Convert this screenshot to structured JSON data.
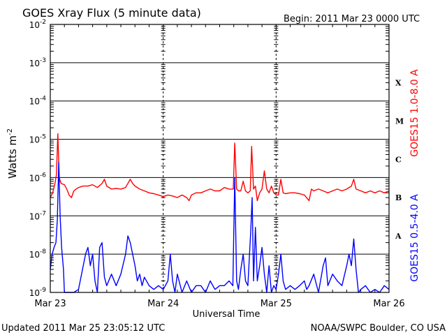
{
  "header": {
    "title": "GOES Xray Flux (5 minute data)",
    "begin": "Begin:  2011 Mar 23 0000 UTC"
  },
  "footer": {
    "updated": "Updated 2011 Mar 25 23:05:12 UTC",
    "credit": "NOAA/SWPC Boulder, CO USA"
  },
  "colors": {
    "long_channel": "#ff0000",
    "short_channel": "#0000ff",
    "grid": "#000000"
  },
  "chart_data": {
    "type": "line",
    "title": "GOES Xray Flux (5 minute data)",
    "xlabel": "Universal Time",
    "ylabel_main": "Watts m",
    "ylabel_sup": "-2",
    "yscale": "log",
    "ylim": [
      1e-09,
      0.01
    ],
    "xlim": [
      0,
      72
    ],
    "x_units": "hours since 2011 Mar 23 0000 UTC",
    "y_ticks": [
      {
        "base": "10",
        "exp": "-2",
        "value": 0.01
      },
      {
        "base": "10",
        "exp": "-3",
        "value": 0.001
      },
      {
        "base": "10",
        "exp": "-4",
        "value": 0.0001
      },
      {
        "base": "10",
        "exp": "-5",
        "value": 1e-05
      },
      {
        "base": "10",
        "exp": "-6",
        "value": 1e-06
      },
      {
        "base": "10",
        "exp": "-7",
        "value": 1e-07
      },
      {
        "base": "10",
        "exp": "-8",
        "value": 1e-08
      },
      {
        "base": "10",
        "exp": "-9",
        "value": 1e-09
      }
    ],
    "x_ticks": [
      {
        "label": "Mar 23",
        "hour": 0
      },
      {
        "label": "Mar 24",
        "hour": 24
      },
      {
        "label": "Mar 25",
        "hour": 48
      },
      {
        "label": "Mar 26",
        "hour": 72
      }
    ],
    "flare_classes": [
      {
        "label": "X",
        "value": 0.0003
      },
      {
        "label": "M",
        "value": 3e-05
      },
      {
        "label": "C",
        "value": 3e-06
      },
      {
        "label": "B",
        "value": 3e-07
      },
      {
        "label": "A",
        "value": 3e-08
      }
    ],
    "grid": true,
    "series": [
      {
        "name": "GOES15 1.0-8.0 A",
        "color": "#ff0000",
        "points": [
          [
            0,
            3e-07
          ],
          [
            0.5,
            4e-07
          ],
          [
            1,
            7e-07
          ],
          [
            1.3,
            1.2e-06
          ],
          [
            1.6,
            1.4e-05
          ],
          [
            1.9,
            1e-06
          ],
          [
            2.3,
            7e-07
          ],
          [
            3,
            6.5e-07
          ],
          [
            3.5,
            5e-07
          ],
          [
            4,
            3.5e-07
          ],
          [
            4.5,
            3e-07
          ],
          [
            5,
            4.5e-07
          ],
          [
            5.5,
            5e-07
          ],
          [
            6,
            5.5e-07
          ],
          [
            7,
            6e-07
          ],
          [
            8,
            6e-07
          ],
          [
            9,
            6.5e-07
          ],
          [
            10,
            5.5e-07
          ],
          [
            11,
            7e-07
          ],
          [
            11.5,
            9e-07
          ],
          [
            12,
            6e-07
          ],
          [
            13,
            5e-07
          ],
          [
            14,
            5.2e-07
          ],
          [
            15,
            5e-07
          ],
          [
            16,
            5.5e-07
          ],
          [
            17,
            9e-07
          ],
          [
            17.5,
            7e-07
          ],
          [
            18,
            6e-07
          ],
          [
            19,
            5e-07
          ],
          [
            20,
            4.5e-07
          ],
          [
            21,
            4e-07
          ],
          [
            22,
            3.8e-07
          ],
          [
            23,
            3.5e-07
          ],
          [
            24,
            3.2e-07
          ],
          [
            25,
            3.5e-07
          ],
          [
            26,
            3.3e-07
          ],
          [
            27,
            3e-07
          ],
          [
            28,
            3.5e-07
          ],
          [
            29,
            3e-07
          ],
          [
            29.5,
            2.5e-07
          ],
          [
            30,
            3.5e-07
          ],
          [
            31,
            4e-07
          ],
          [
            32,
            4e-07
          ],
          [
            33,
            4.5e-07
          ],
          [
            34,
            5e-07
          ],
          [
            35,
            4.5e-07
          ],
          [
            36,
            4.5e-07
          ],
          [
            37,
            5.5e-07
          ],
          [
            38,
            5e-07
          ],
          [
            38.9,
            5e-07
          ],
          [
            39.2,
            8e-06
          ],
          [
            39.6,
            5e-07
          ],
          [
            40,
            4.5e-07
          ],
          [
            40.5,
            4.5e-07
          ],
          [
            41,
            8e-07
          ],
          [
            41.5,
            4.5e-07
          ],
          [
            42,
            4e-07
          ],
          [
            42.5,
            4.5e-07
          ],
          [
            42.8,
            6.5e-06
          ],
          [
            43.2,
            5e-07
          ],
          [
            43.6,
            6e-07
          ],
          [
            44,
            2.5e-07
          ],
          [
            44.5,
            4e-07
          ],
          [
            45,
            5e-07
          ],
          [
            45.5,
            1.5e-06
          ],
          [
            46,
            5e-07
          ],
          [
            46.5,
            4e-07
          ],
          [
            47,
            6e-07
          ],
          [
            47.5,
            4e-07
          ],
          [
            48,
            3.5e-07
          ],
          [
            48.5,
            3.5e-07
          ],
          [
            49,
            9e-07
          ],
          [
            49.5,
            4e-07
          ],
          [
            50,
            3.8e-07
          ],
          [
            51,
            4e-07
          ],
          [
            52,
            4e-07
          ],
          [
            53,
            3.8e-07
          ],
          [
            54,
            3.5e-07
          ],
          [
            55,
            2.5e-07
          ],
          [
            55.5,
            5e-07
          ],
          [
            56,
            4.5e-07
          ],
          [
            57,
            5e-07
          ],
          [
            58,
            4.5e-07
          ],
          [
            59,
            4e-07
          ],
          [
            60,
            4.5e-07
          ],
          [
            61,
            5e-07
          ],
          [
            62,
            4.5e-07
          ],
          [
            63,
            5e-07
          ],
          [
            64,
            6e-07
          ],
          [
            64.5,
            9e-07
          ],
          [
            65,
            5e-07
          ],
          [
            66,
            4.5e-07
          ],
          [
            67,
            4e-07
          ],
          [
            68,
            4.5e-07
          ],
          [
            69,
            4e-07
          ],
          [
            70,
            4.5e-07
          ],
          [
            71,
            4e-07
          ],
          [
            72,
            4.5e-07
          ]
        ]
      },
      {
        "name": "GOES15 0.5-4.0 A",
        "color": "#0000ff",
        "points": [
          [
            0,
            4e-09
          ],
          [
            0.4,
            1e-08
          ],
          [
            0.8,
            1.5e-08
          ],
          [
            1.2,
            2e-08
          ],
          [
            1.5,
            8e-08
          ],
          [
            1.8,
            2.5e-06
          ],
          [
            2.1,
            1e-07
          ],
          [
            2.4,
            1.5e-08
          ],
          [
            2.8,
            4e-09
          ],
          [
            3,
            1e-09
          ],
          [
            5,
            1e-09
          ],
          [
            6,
            1.2e-09
          ],
          [
            7,
            5e-09
          ],
          [
            7.5,
            1e-08
          ],
          [
            8,
            1.5e-08
          ],
          [
            8.5,
            5e-09
          ],
          [
            9,
            1e-08
          ],
          [
            9.5,
            2e-09
          ],
          [
            10,
            1e-09
          ],
          [
            10.5,
            1.5e-08
          ],
          [
            11,
            2e-08
          ],
          [
            11.5,
            2.5e-09
          ],
          [
            12,
            1.5e-09
          ],
          [
            13,
            3e-09
          ],
          [
            14,
            1.5e-09
          ],
          [
            15,
            3e-09
          ],
          [
            16,
            1e-08
          ],
          [
            16.5,
            3e-08
          ],
          [
            17,
            2e-08
          ],
          [
            17.5,
            1e-08
          ],
          [
            18,
            5e-09
          ],
          [
            18.5,
            2e-09
          ],
          [
            19,
            3e-09
          ],
          [
            19.5,
            1.5e-09
          ],
          [
            20,
            2.5e-09
          ],
          [
            21,
            1.5e-09
          ],
          [
            22,
            1.2e-09
          ],
          [
            23,
            1.5e-09
          ],
          [
            24,
            1.2e-09
          ],
          [
            25,
            2e-09
          ],
          [
            25.5,
            1e-08
          ],
          [
            26,
            2e-09
          ],
          [
            26.5,
            1e-09
          ],
          [
            27,
            3e-09
          ],
          [
            28,
            1e-09
          ],
          [
            29,
            2e-09
          ],
          [
            30,
            1e-09
          ],
          [
            31,
            1.5e-09
          ],
          [
            32,
            1.5e-09
          ],
          [
            33,
            1e-09
          ],
          [
            34,
            2e-09
          ],
          [
            35,
            1.2e-09
          ],
          [
            36,
            1.5e-09
          ],
          [
            37,
            1.5e-09
          ],
          [
            38,
            2e-09
          ],
          [
            38.8,
            1.5e-09
          ],
          [
            39.2,
            1e-06
          ],
          [
            39.6,
            2e-09
          ],
          [
            40,
            1.2e-09
          ],
          [
            40.5,
            4e-09
          ],
          [
            41,
            1e-08
          ],
          [
            41.5,
            2e-09
          ],
          [
            42,
            1.5e-09
          ],
          [
            42.6,
            4e-08
          ],
          [
            42.9,
            3e-07
          ],
          [
            43.2,
            2e-09
          ],
          [
            43.6,
            5e-08
          ],
          [
            44,
            2e-09
          ],
          [
            44.5,
            5e-09
          ],
          [
            45,
            1.5e-08
          ],
          [
            45.5,
            3e-09
          ],
          [
            46,
            1e-09
          ],
          [
            46.5,
            5e-09
          ],
          [
            47,
            1e-09
          ],
          [
            47.5,
            1.5e-09
          ],
          [
            48,
            1.2e-09
          ],
          [
            48.5,
            3e-09
          ],
          [
            49,
            1e-08
          ],
          [
            49.5,
            2e-09
          ],
          [
            50,
            1.2e-09
          ],
          [
            51,
            1.5e-09
          ],
          [
            52,
            1.2e-09
          ],
          [
            53,
            1.5e-09
          ],
          [
            54,
            2e-09
          ],
          [
            54.5,
            1.2e-09
          ],
          [
            55,
            1.5e-09
          ],
          [
            56,
            3e-09
          ],
          [
            57,
            1e-09
          ],
          [
            58,
            5e-09
          ],
          [
            58.5,
            8e-09
          ],
          [
            59,
            1.5e-09
          ],
          [
            60,
            3e-09
          ],
          [
            61,
            2e-09
          ],
          [
            62,
            1.5e-09
          ],
          [
            63,
            5e-09
          ],
          [
            63.5,
            1e-08
          ],
          [
            64,
            5e-09
          ],
          [
            64.5,
            2.5e-08
          ],
          [
            65,
            4e-09
          ],
          [
            65.5,
            1e-09
          ],
          [
            66,
            1.2e-09
          ],
          [
            67,
            1.5e-09
          ],
          [
            68,
            1e-09
          ],
          [
            69,
            1.2e-09
          ],
          [
            70,
            1e-09
          ],
          [
            71,
            1.5e-09
          ],
          [
            72,
            1.2e-09
          ]
        ]
      }
    ]
  }
}
